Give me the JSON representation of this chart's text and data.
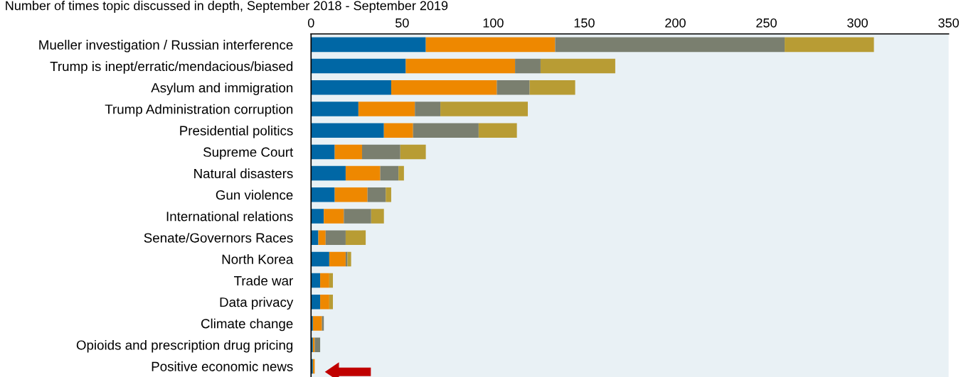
{
  "chart_data": {
    "type": "bar",
    "orientation": "horizontal",
    "stacked": true,
    "title": "Number of times topic discussed in depth, September 2018 - September 2019",
    "categories": [
      "Mueller investigation / Russian interference",
      "Trump is inept/erratic/mendacious/biased",
      "Asylum and immigration",
      "Trump Administration corruption",
      "Presidential politics",
      "Supreme Court",
      "Natural disasters",
      "Gun violence",
      "International relations",
      "Senate/Governors Races",
      "North Korea",
      "Trade war",
      "Data privacy",
      "Climate change",
      "Opioids and prescription drug pricing",
      "Positive economic news"
    ],
    "series": [
      {
        "color": "#0067a5",
        "values": [
          63,
          52,
          44,
          26,
          40,
          13,
          19,
          13,
          7,
          4,
          10,
          5,
          5,
          1,
          1,
          1
        ]
      },
      {
        "color": "#ee8800",
        "values": [
          71,
          60,
          58,
          31,
          16,
          15,
          19,
          18,
          11,
          4,
          9,
          5,
          5,
          5,
          1,
          1
        ]
      },
      {
        "color": "#7a7f6f",
        "values": [
          126,
          14,
          18,
          14,
          36,
          21,
          10,
          10,
          15,
          11,
          1,
          0,
          0,
          1,
          3,
          0
        ]
      },
      {
        "color": "#b89c34",
        "values": [
          49,
          41,
          25,
          48,
          21,
          14,
          3,
          3,
          7,
          11,
          2,
          2,
          2,
          0,
          0,
          0
        ]
      }
    ],
    "xlim": [
      0,
      350
    ],
    "xticks": [
      0,
      50,
      100,
      150,
      200,
      250,
      300,
      350
    ],
    "grid": false
  }
}
